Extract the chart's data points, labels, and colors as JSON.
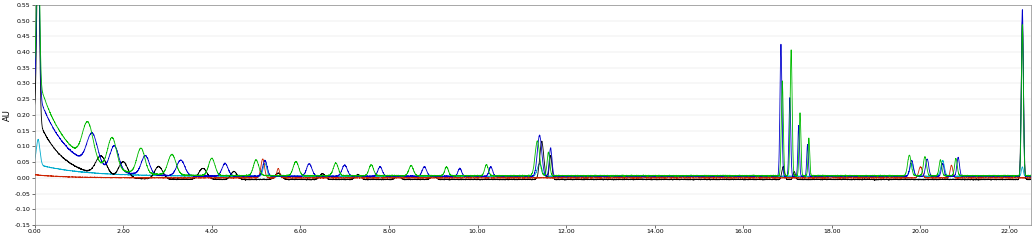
{
  "title": "",
  "xlabel": "",
  "ylabel": "AU",
  "xlim": [
    0.0,
    22.5
  ],
  "ylim": [
    -0.15,
    0.55
  ],
  "yticks": [
    -0.15,
    -0.1,
    -0.05,
    0.0,
    0.05,
    0.1,
    0.15,
    0.2,
    0.25,
    0.3,
    0.35,
    0.4,
    0.45,
    0.5,
    0.55
  ],
  "xticks": [
    0.0,
    2.0,
    4.0,
    6.0,
    8.0,
    10.0,
    12.0,
    14.0,
    16.0,
    18.0,
    20.0,
    22.0
  ],
  "colors": {
    "black": "#000000",
    "blue": "#0000cc",
    "green": "#00bb00",
    "violet": "#8800cc",
    "red": "#cc2200",
    "cyan": "#00aacc",
    "gray": "#999999"
  },
  "background": "#ffffff",
  "line_width": 0.6
}
